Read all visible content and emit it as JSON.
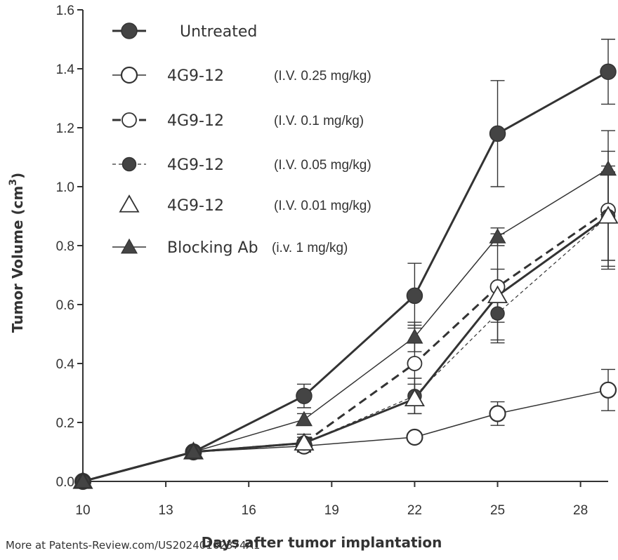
{
  "chart_data": {
    "type": "line",
    "xlabel": "Days after tumor implantation",
    "ylabel": "Tumor Volume (cm",
    "ylabel_sup": "3",
    "ylabel_close": ")",
    "xlim": [
      10,
      29
    ],
    "ylim": [
      0,
      1.6
    ],
    "x_ticks": [
      10,
      13,
      16,
      19,
      22,
      25,
      28
    ],
    "x_tick_labels": [
      "10",
      "13",
      "16",
      "19",
      "22",
      "25",
      "28"
    ],
    "y_ticks": [
      0,
      0.2,
      0.4,
      0.6,
      0.8,
      1.0,
      1.2,
      1.4,
      1.6
    ],
    "y_tick_labels": [
      "0.0",
      "0.2",
      "0.4",
      "0.6",
      "0.8",
      "1.0",
      "1.2",
      "1.4",
      "1.6"
    ],
    "grid": false,
    "legend_position": "top-left",
    "series": [
      {
        "name": "Untreated",
        "dose": "",
        "marker": "circle-filled",
        "line": "solid-thick",
        "x": [
          10,
          14,
          18,
          22,
          25,
          29
        ],
        "y": [
          0.0,
          0.1,
          0.29,
          0.63,
          1.18,
          1.39
        ],
        "err": [
          0,
          0.01,
          0.04,
          0.11,
          0.18,
          0.11
        ]
      },
      {
        "name": "4G9-12",
        "dose": "(I.V. 0.25 mg/kg)",
        "marker": "circle-open-large",
        "line": "solid-thin",
        "x": [
          10,
          14,
          18,
          22,
          25,
          29
        ],
        "y": [
          0.0,
          0.1,
          0.12,
          0.15,
          0.23,
          0.31
        ],
        "err": [
          0,
          0.01,
          0.02,
          0.01,
          0.04,
          0.07
        ]
      },
      {
        "name": "4G9-12",
        "dose": "(I.V. 0.1 mg/kg)",
        "marker": "circle-open",
        "line": "dashed-thick",
        "x": [
          10,
          14,
          18,
          22,
          25,
          29
        ],
        "y": [
          0.0,
          0.1,
          0.13,
          0.4,
          0.66,
          0.92
        ],
        "err": [
          0,
          0.01,
          0.03,
          0.13,
          0.18,
          0.2
        ]
      },
      {
        "name": "4G9-12",
        "dose": "(I.V. 0.05 mg/kg)",
        "marker": "circle-filled-small",
        "line": "dashed-thin",
        "x": [
          10,
          14,
          18,
          22,
          25,
          29
        ],
        "y": [
          0.0,
          0.1,
          0.13,
          0.29,
          0.57,
          0.9
        ],
        "err": [
          0,
          0.01,
          0.02,
          0.06,
          0.1,
          0.17
        ]
      },
      {
        "name": "4G9-12",
        "dose": "(I.V. 0.01 mg/kg)",
        "marker": "triangle-open",
        "line": "solid-thick",
        "x": [
          10,
          14,
          18,
          22,
          25,
          29
        ],
        "y": [
          0.0,
          0.1,
          0.13,
          0.28,
          0.63,
          0.9
        ],
        "err": [
          0,
          0.01,
          0.03,
          0.05,
          0.09,
          0.15
        ]
      },
      {
        "name": "Blocking Ab",
        "dose": "(i.v. 1 mg/kg)",
        "marker": "triangle-filled",
        "line": "solid-thin",
        "x": [
          10,
          14,
          18,
          22,
          25,
          29
        ],
        "y": [
          0.0,
          0.1,
          0.21,
          0.49,
          0.83,
          1.06
        ],
        "err": [
          0,
          0.01,
          0.02,
          0.05,
          0.03,
          0.13
        ]
      }
    ]
  },
  "watermark": "More at Patents-Review.com/US20240162374A1"
}
